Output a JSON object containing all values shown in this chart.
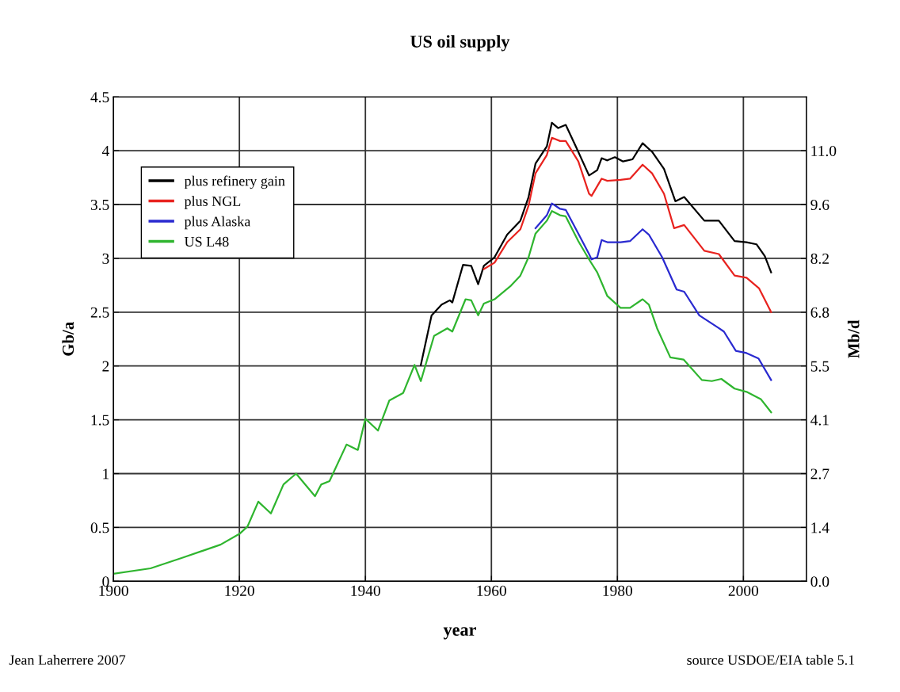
{
  "chart_data": {
    "type": "line",
    "title": "US oil supply",
    "xlabel": "year",
    "ylabel": "Gb/a",
    "y2label": "Mb/d",
    "xlim": [
      1900,
      2010
    ],
    "xticks": [
      1900,
      1920,
      1940,
      1960,
      1980,
      2000
    ],
    "ylim": [
      0,
      4.5
    ],
    "yticks": [
      0,
      0.5,
      1,
      1.5,
      2,
      2.5,
      3,
      3.5,
      4,
      4.5
    ],
    "y2lim": [
      0,
      12.33
    ],
    "y2ticks": [
      {
        "value": 0,
        "label": "0.0"
      },
      {
        "value": 1.37,
        "label": "1.4"
      },
      {
        "value": 2.74,
        "label": "2.7"
      },
      {
        "value": 4.11,
        "label": "4.1"
      },
      {
        "value": 5.48,
        "label": "5.5"
      },
      {
        "value": 6.85,
        "label": "6.8"
      },
      {
        "value": 8.22,
        "label": "8.2"
      },
      {
        "value": 9.59,
        "label": "9.6"
      },
      {
        "value": 10.96,
        "label": "11.0"
      }
    ],
    "grid": true,
    "legend": "top left",
    "line_style": "solid",
    "annotations": [
      "Jean Laherrere 2007",
      "source USDOE/EIA table 5.1"
    ],
    "series": [
      {
        "name": "plus refinery gain",
        "color": "#000000",
        "x": [
          1948.8,
          1950.5,
          1952.1,
          1953.4,
          1953.8,
          1955.5,
          1956.8,
          1957.9,
          1958.8,
          1960.5,
          1962.5,
          1964.6,
          1965.9,
          1967,
          1968.8,
          1969.6,
          1970.6,
          1971.8,
          1973.4,
          1975.5,
          1976.8,
          1977.5,
          1978.4,
          1979.6,
          1980.9,
          1982.4,
          1984,
          1985.5,
          1987.4,
          1989.2,
          1990.6,
          1993.8,
          1996.1,
          1998.6,
          2000.5,
          2002.1,
          2003.4,
          2004.4
        ],
        "values": [
          2.01,
          2.47,
          2.57,
          2.61,
          2.59,
          2.94,
          2.93,
          2.76,
          2.93,
          3.01,
          3.22,
          3.35,
          3.57,
          3.88,
          4.04,
          4.26,
          4.21,
          4.24,
          4.04,
          3.77,
          3.82,
          3.93,
          3.91,
          3.94,
          3.9,
          3.92,
          4.07,
          3.99,
          3.83,
          3.53,
          3.57,
          3.35,
          3.35,
          3.16,
          3.15,
          3.13,
          3.02,
          2.87
        ]
      },
      {
        "name": "plus NGL",
        "color": "#e8231f",
        "x": [
          1958.8,
          1960.5,
          1962.5,
          1964.6,
          1965.9,
          1967,
          1968.8,
          1969.6,
          1970.9,
          1971.8,
          1973.8,
          1975.5,
          1975.9,
          1977.5,
          1978.4,
          1980.5,
          1982,
          1984,
          1985.5,
          1987.4,
          1989,
          1990.6,
          1993.8,
          1996.1,
          1998.6,
          2000.5,
          2002.5,
          2004.4
        ],
        "values": [
          2.9,
          2.96,
          3.15,
          3.27,
          3.49,
          3.79,
          3.96,
          4.12,
          4.09,
          4.09,
          3.9,
          3.6,
          3.58,
          3.74,
          3.72,
          3.73,
          3.74,
          3.87,
          3.79,
          3.6,
          3.28,
          3.31,
          3.07,
          3.04,
          2.84,
          2.82,
          2.72,
          2.5
        ]
      },
      {
        "name": "plus Alaska",
        "color": "#2a2ad0",
        "x": [
          1967,
          1968.8,
          1969.6,
          1970.9,
          1971.8,
          1973.8,
          1975.5,
          1975.9,
          1976.8,
          1977.5,
          1978.4,
          1980.5,
          1982,
          1984,
          1985,
          1987.1,
          1989.4,
          1990.6,
          1993,
          1995.9,
          1996.9,
          1998.8,
          2000.5,
          2002.4,
          2004.4
        ],
        "values": [
          3.28,
          3.4,
          3.51,
          3.46,
          3.45,
          3.23,
          3.04,
          2.99,
          3.01,
          3.17,
          3.15,
          3.15,
          3.16,
          3.27,
          3.22,
          3.01,
          2.71,
          2.69,
          2.47,
          2.36,
          2.32,
          2.14,
          2.12,
          2.07,
          1.87
        ]
      },
      {
        "name": "US L48",
        "color": "#2fb52f",
        "x": [
          1900,
          1905.9,
          1911,
          1917,
          1920,
          1921.3,
          1923,
          1925,
          1927,
          1929,
          1932,
          1933,
          1934.3,
          1937,
          1938.8,
          1940,
          1942,
          1943.8,
          1946,
          1947.8,
          1948.8,
          1950.9,
          1953,
          1953.8,
          1955.9,
          1956.8,
          1957.9,
          1958.8,
          1960.5,
          1963,
          1964.6,
          1965.9,
          1967,
          1968.8,
          1969.6,
          1970.9,
          1971.8,
          1973.8,
          1975.5,
          1976.8,
          1978.4,
          1980.5,
          1982,
          1984,
          1985,
          1986.3,
          1988.4,
          1990.5,
          1993.4,
          1995,
          1996.5,
          1998.6,
          2000.5,
          2002.8,
          2004.4
        ],
        "values": [
          0.07,
          0.12,
          0.22,
          0.34,
          0.44,
          0.51,
          0.74,
          0.63,
          0.9,
          1.0,
          0.79,
          0.9,
          0.93,
          1.27,
          1.22,
          1.51,
          1.4,
          1.68,
          1.75,
          2.01,
          1.86,
          2.28,
          2.35,
          2.32,
          2.62,
          2.61,
          2.47,
          2.58,
          2.62,
          2.74,
          2.84,
          3.01,
          3.23,
          3.35,
          3.44,
          3.4,
          3.39,
          3.16,
          2.99,
          2.87,
          2.65,
          2.54,
          2.54,
          2.62,
          2.57,
          2.35,
          2.08,
          2.06,
          1.87,
          1.86,
          1.88,
          1.79,
          1.76,
          1.69,
          1.57
        ]
      }
    ]
  }
}
